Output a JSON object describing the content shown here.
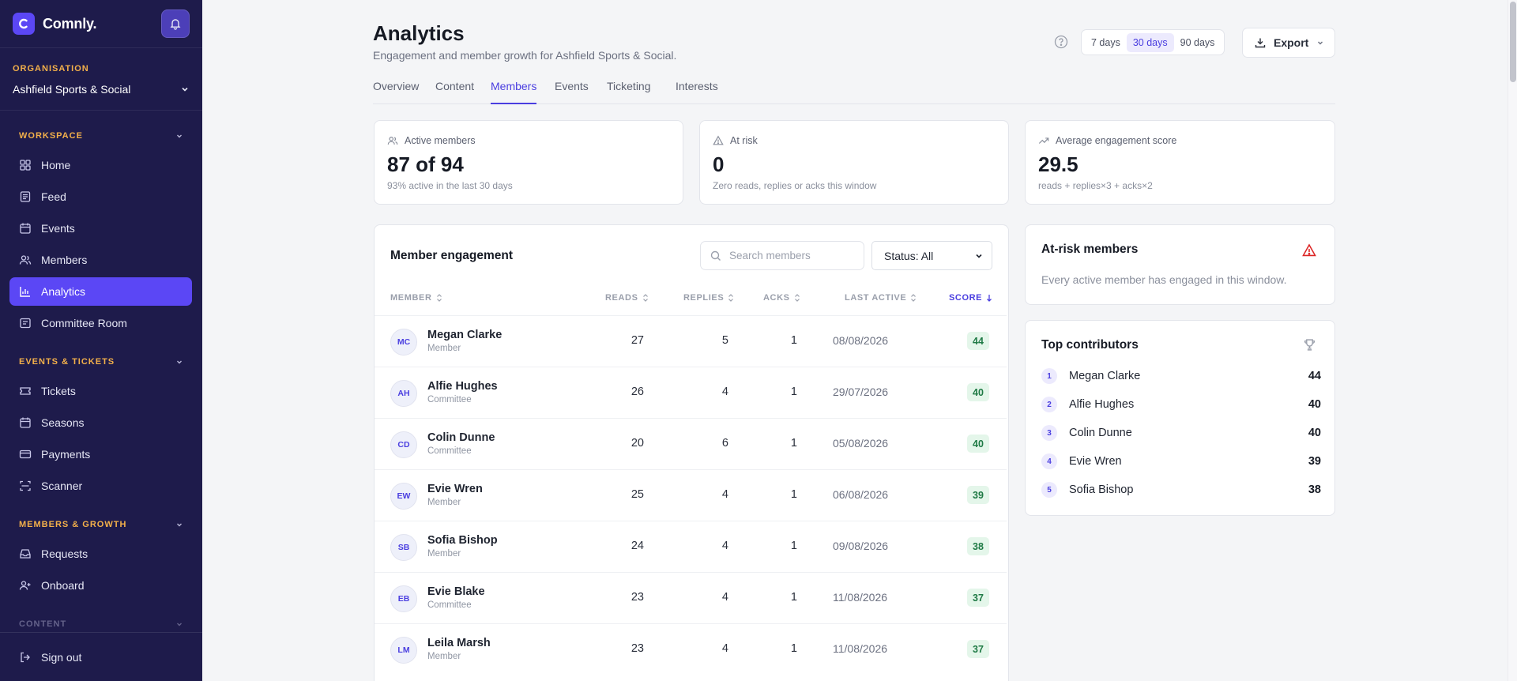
{
  "brand": {
    "name": "Comnly."
  },
  "sidebar": {
    "org_label": "ORGANISATION",
    "org_name": "Ashfield Sports & Social",
    "sections": [
      {
        "label": "WORKSPACE"
      },
      {
        "label": "EVENTS & TICKETS"
      },
      {
        "label": "MEMBERS & GROWTH"
      },
      {
        "label": "CONTENT"
      }
    ],
    "items": [
      {
        "label": "Home",
        "icon": "grid-icon"
      },
      {
        "label": "Feed",
        "icon": "feed-icon"
      },
      {
        "label": "Events",
        "icon": "calendar-icon"
      },
      {
        "label": "Members",
        "icon": "users-icon"
      },
      {
        "label": "Analytics",
        "icon": "chart-icon",
        "active": true
      },
      {
        "label": "Committee Room",
        "icon": "message-icon"
      },
      {
        "label": "Tickets",
        "icon": "ticket-icon"
      },
      {
        "label": "Seasons",
        "icon": "calendar-icon"
      },
      {
        "label": "Payments",
        "icon": "card-icon"
      },
      {
        "label": "Scanner",
        "icon": "scan-icon"
      },
      {
        "label": "Requests",
        "icon": "inbox-icon"
      },
      {
        "label": "Onboard",
        "icon": "user-plus-icon"
      }
    ],
    "sign_out": "Sign out"
  },
  "header": {
    "title": "Analytics",
    "subtitle": "Engagement and member growth for Ashfield Sports & Social.",
    "ranges": [
      "7 days",
      "30 days",
      "90 days"
    ],
    "active_range": "30 days",
    "export_label": "Export"
  },
  "tabs": [
    "Overview",
    "Content",
    "Members",
    "Events",
    "Ticketing",
    "Interests"
  ],
  "active_tab": "Members",
  "stats": [
    {
      "label": "Active members",
      "value": "87 of 94",
      "note": "93% active in the last 30 days",
      "icon": "users-icon"
    },
    {
      "label": "At risk",
      "value": "0",
      "note": "Zero reads, replies or acks this window",
      "icon": "warning-icon"
    },
    {
      "label": "Average engagement score",
      "value": "29.5",
      "note": "reads + replies×3 + acks×2",
      "icon": "trend-icon"
    }
  ],
  "engagement": {
    "title": "Member engagement",
    "search_placeholder": "Search members",
    "status_filter": "Status: All",
    "columns": [
      "MEMBER",
      "READS",
      "REPLIES",
      "ACKS",
      "LAST ACTIVE",
      "SCORE"
    ],
    "rows": [
      {
        "initials": "MC",
        "name": "Megan Clarke",
        "role": "Member",
        "reads": "27",
        "replies": "5",
        "acks": "1",
        "last_active": "08/08/2026",
        "score": "44"
      },
      {
        "initials": "AH",
        "name": "Alfie Hughes",
        "role": "Committee",
        "reads": "26",
        "replies": "4",
        "acks": "1",
        "last_active": "29/07/2026",
        "score": "40"
      },
      {
        "initials": "CD",
        "name": "Colin Dunne",
        "role": "Committee",
        "reads": "20",
        "replies": "6",
        "acks": "1",
        "last_active": "05/08/2026",
        "score": "40"
      },
      {
        "initials": "EW",
        "name": "Evie Wren",
        "role": "Member",
        "reads": "25",
        "replies": "4",
        "acks": "1",
        "last_active": "06/08/2026",
        "score": "39"
      },
      {
        "initials": "SB",
        "name": "Sofia Bishop",
        "role": "Member",
        "reads": "24",
        "replies": "4",
        "acks": "1",
        "last_active": "09/08/2026",
        "score": "38"
      },
      {
        "initials": "EB",
        "name": "Evie Blake",
        "role": "Committee",
        "reads": "23",
        "replies": "4",
        "acks": "1",
        "last_active": "11/08/2026",
        "score": "37"
      },
      {
        "initials": "LM",
        "name": "Leila Marsh",
        "role": "Member",
        "reads": "23",
        "replies": "4",
        "acks": "1",
        "last_active": "11/08/2026",
        "score": "37"
      }
    ]
  },
  "at_risk": {
    "title": "At-risk members",
    "message": "Every active member has engaged in this window."
  },
  "top_contributors": {
    "title": "Top contributors",
    "items": [
      {
        "rank": "1",
        "name": "Megan Clarke",
        "score": "44"
      },
      {
        "rank": "2",
        "name": "Alfie Hughes",
        "score": "40"
      },
      {
        "rank": "3",
        "name": "Colin Dunne",
        "score": "40"
      },
      {
        "rank": "4",
        "name": "Evie Wren",
        "score": "39"
      },
      {
        "rank": "5",
        "name": "Sofia Bishop",
        "score": "38"
      }
    ]
  },
  "colors": {
    "sidebar_bg": "#1e1b4b",
    "accent": "#5b47f5",
    "section_label": "#f3b04a",
    "score_bg": "#e4f6ea",
    "score_fg": "#1f7a45",
    "danger": "#dc2626"
  }
}
